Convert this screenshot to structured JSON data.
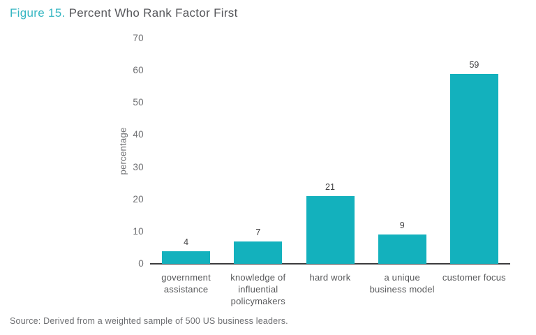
{
  "title": {
    "figure_label": "Figure 15.",
    "text": " Percent Who Rank Factor First"
  },
  "source": "Source: Derived from a weighted sample of 500 US business leaders.",
  "chart_data": {
    "type": "bar",
    "title": "Figure 15. Percent Who Rank Factor First",
    "categories": [
      "government assistance",
      "knowledge of influential policymakers",
      "hard work",
      "a unique business model",
      "customer focus"
    ],
    "category_label_lines": [
      [
        "government",
        "assistance"
      ],
      [
        "knowledge of",
        "influential",
        "policymakers"
      ],
      [
        "hard work"
      ],
      [
        "a unique",
        "business model"
      ],
      [
        "customer focus"
      ]
    ],
    "values": [
      4,
      7,
      21,
      9,
      59
    ],
    "value_labels_shown": true,
    "xlabel": "",
    "ylabel": "percentage",
    "yticks": [
      0,
      10,
      20,
      30,
      40,
      50,
      60,
      70
    ],
    "ylim": [
      0,
      70
    ],
    "grid": false,
    "legend": "none",
    "bar_color": "#13b1bd"
  },
  "colors": {
    "accent_teal": "#35b6c2",
    "bar_teal": "#13b1bd",
    "title_text": "#55565a",
    "axis_text": "#6d6e71",
    "value_label_text": "#414042",
    "category_text": "#58595b",
    "axis_line": "#3c3c3e",
    "background": "#ffffff"
  }
}
